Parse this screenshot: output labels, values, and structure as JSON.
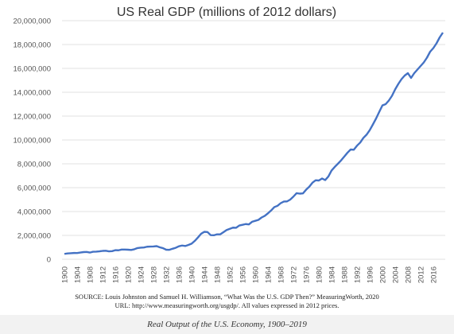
{
  "chart_data": {
    "type": "line",
    "title": "US Real GDP (millions of 2012 dollars)",
    "xlabel": "",
    "ylabel": "",
    "ylim": [
      0,
      20000000
    ],
    "y_ticks": [
      "0",
      "2,000,000",
      "4,000,000",
      "6,000,000",
      "8,000,000",
      "10,000,000",
      "12,000,000",
      "14,000,000",
      "16,000,000",
      "18,000,000",
      "20,000,000"
    ],
    "x_ticks": [
      "1900",
      "1904",
      "1908",
      "1912",
      "1916",
      "1920",
      "1924",
      "1928",
      "1932",
      "1936",
      "1940",
      "1944",
      "1948",
      "1952",
      "1956",
      "1960",
      "1964",
      "1968",
      "1972",
      "1976",
      "1980",
      "1984",
      "1988",
      "1992",
      "1996",
      "2000",
      "2004",
      "2008",
      "2012",
      "2016"
    ],
    "grid": true,
    "line_color": "#4472c4",
    "x": [
      1900,
      1901,
      1902,
      1903,
      1904,
      1905,
      1906,
      1907,
      1908,
      1909,
      1910,
      1911,
      1912,
      1913,
      1914,
      1915,
      1916,
      1917,
      1918,
      1919,
      1920,
      1921,
      1922,
      1923,
      1924,
      1925,
      1926,
      1927,
      1928,
      1929,
      1930,
      1931,
      1932,
      1933,
      1934,
      1935,
      1936,
      1937,
      1938,
      1939,
      1940,
      1941,
      1942,
      1943,
      1944,
      1945,
      1946,
      1947,
      1948,
      1949,
      1950,
      1951,
      1952,
      1953,
      1954,
      1955,
      1956,
      1957,
      1958,
      1959,
      1960,
      1961,
      1962,
      1963,
      1964,
      1965,
      1966,
      1967,
      1968,
      1969,
      1970,
      1971,
      1972,
      1973,
      1974,
      1975,
      1976,
      1977,
      1978,
      1979,
      1980,
      1981,
      1982,
      1983,
      1984,
      1985,
      1986,
      1987,
      1988,
      1989,
      1990,
      1991,
      1992,
      1993,
      1994,
      1995,
      1996,
      1997,
      1998,
      1999,
      2000,
      2001,
      2002,
      2003,
      2004,
      2005,
      2006,
      2007,
      2008,
      2009,
      2010,
      2011,
      2012,
      2013,
      2014,
      2015,
      2016,
      2017,
      2018,
      2019
    ],
    "values": [
      450000,
      490000,
      505000,
      525000,
      520000,
      565000,
      600000,
      610000,
      560000,
      630000,
      640000,
      660000,
      700000,
      710000,
      660000,
      680000,
      760000,
      750000,
      810000,
      810000,
      800000,
      780000,
      840000,
      940000,
      970000,
      990000,
      1050000,
      1060000,
      1070000,
      1100000,
      1000000,
      930000,
      800000,
      790000,
      880000,
      960000,
      1090000,
      1150000,
      1110000,
      1200000,
      1310000,
      1540000,
      1830000,
      2140000,
      2300000,
      2280000,
      2020000,
      2010000,
      2090000,
      2090000,
      2270000,
      2450000,
      2550000,
      2650000,
      2640000,
      2830000,
      2890000,
      2950000,
      2920000,
      3140000,
      3220000,
      3300000,
      3500000,
      3640000,
      3850000,
      4090000,
      4370000,
      4480000,
      4700000,
      4840000,
      4850000,
      5000000,
      5250000,
      5540000,
      5500000,
      5520000,
      5830000,
      6080000,
      6420000,
      6620000,
      6600000,
      6770000,
      6640000,
      6940000,
      7440000,
      7740000,
      8010000,
      8290000,
      8610000,
      8930000,
      9200000,
      9180000,
      9520000,
      9780000,
      10170000,
      10440000,
      10820000,
      11300000,
      11800000,
      12360000,
      12900000,
      13000000,
      13300000,
      13700000,
      14240000,
      14700000,
      15100000,
      15400000,
      15600000,
      15200000,
      15600000,
      15900000,
      16200000,
      16500000,
      16900000,
      17400000,
      17700000,
      18100000,
      18600000,
      19000000
    ]
  },
  "source": {
    "line1": "SOURCE: Louis Johnston and Samuel H. Williamson, “What Was the U.S. GDP Then?” MeasuringWorth, 2020",
    "line2": "URL: http://www.measuringworth.org/usgdp/. All values expressed in 2012 prices."
  },
  "caption": "Real Output of the U.S. Economy, 1900–2019"
}
